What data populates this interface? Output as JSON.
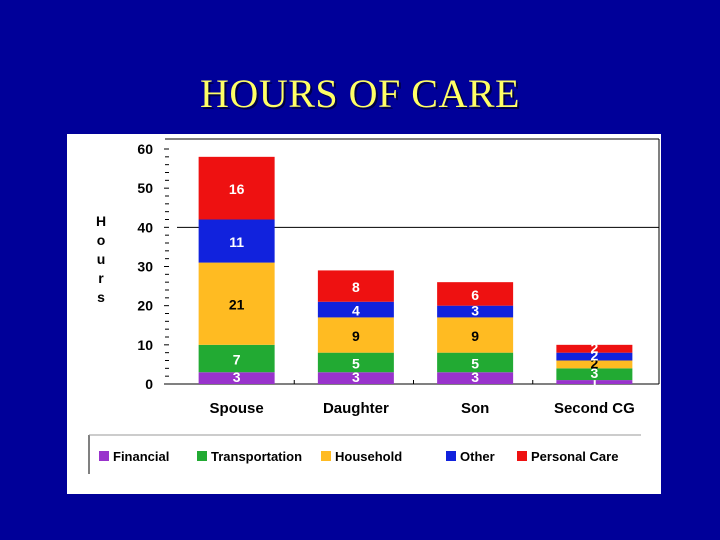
{
  "slide": {
    "title": "HOURS OF CARE"
  },
  "chart_data": {
    "type": "bar",
    "stacked": true,
    "title": "HOURS OF CARE",
    "xlabel": "",
    "ylabel": "Hours",
    "ylim": [
      0,
      60
    ],
    "yticks": [
      0,
      10,
      20,
      30,
      40,
      50,
      60
    ],
    "ytick_labels": [
      "0",
      "10",
      "20",
      "30",
      "40",
      "50",
      "60"
    ],
    "categories": [
      "Spouse",
      "Daughter",
      "Son",
      "Second CG"
    ],
    "series": [
      {
        "name": "Financial",
        "color": "#9933cc",
        "values": [
          3,
          3,
          3,
          1
        ],
        "labels": [
          "3",
          "3",
          "3",
          "1"
        ]
      },
      {
        "name": "Transportation",
        "color": "#22aa33",
        "values": [
          7,
          5,
          5,
          3
        ],
        "labels": [
          "7",
          "5",
          "5",
          "3"
        ]
      },
      {
        "name": "Household",
        "color": "#ffbb22",
        "values": [
          21,
          9,
          9,
          2
        ],
        "labels": [
          "21",
          "9",
          "9",
          "2"
        ]
      },
      {
        "name": "Other",
        "color": "#1122dd",
        "values": [
          11,
          4,
          3,
          2
        ],
        "labels": [
          "11",
          "4",
          "3",
          "2"
        ]
      },
      {
        "name": "Personal Care",
        "color": "#ee1111",
        "values": [
          16,
          8,
          6,
          2
        ],
        "labels": [
          "16",
          "8",
          "6",
          "2"
        ]
      }
    ],
    "legend_position": "bottom",
    "gridlines": false
  }
}
